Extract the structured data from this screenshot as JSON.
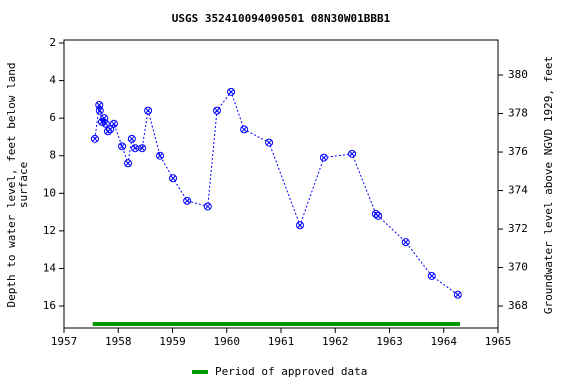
{
  "chart_data": {
    "type": "scatter",
    "title": "USGS 352410094090501 08N30W01BBB1",
    "ylabel": [
      "Depth to water level, feet below land",
      "surface"
    ],
    "y2label": "Groundwater level above NGVD 1929, feet",
    "xlim": [
      1957,
      1965
    ],
    "xticks": [
      1957,
      1958,
      1959,
      1960,
      1961,
      1962,
      1963,
      1964,
      1965
    ],
    "ylim": [
      17.17,
      1.84
    ],
    "yticks": [
      2,
      4,
      6,
      8,
      10,
      12,
      14,
      16
    ],
    "y2lim": [
      366.86,
      381.82
    ],
    "y2ticks": [
      368,
      370,
      372,
      374,
      376,
      378,
      380
    ],
    "series": [
      {
        "color": "#0000ff",
        "x": [
          1957.57,
          1957.65,
          1957.66,
          1957.7,
          1957.74,
          1957.77,
          1957.81,
          1957.85,
          1957.92,
          1958.07,
          1958.18,
          1958.25,
          1958.31,
          1958.44,
          1958.55,
          1958.77,
          1959.01,
          1959.27,
          1959.65,
          1959.82,
          1960.08,
          1960.32,
          1960.78,
          1961.35,
          1961.79,
          1962.31,
          1962.75,
          1962.79,
          1963.3,
          1963.78,
          1964.26
        ],
        "values": [
          7.1,
          5.3,
          5.6,
          6.2,
          6.0,
          6.3,
          6.7,
          6.6,
          6.3,
          7.5,
          8.4,
          7.1,
          7.6,
          7.6,
          5.6,
          8.0,
          9.2,
          10.4,
          10.7,
          5.6,
          4.6,
          6.6,
          7.3,
          11.7,
          8.1,
          7.9,
          11.1,
          11.2,
          12.6,
          14.4,
          15.4
        ]
      }
    ],
    "approved_period": {
      "name": "Period of approved data",
      "color": "#009900",
      "x": [
        1957.53,
        1964.3
      ]
    }
  }
}
